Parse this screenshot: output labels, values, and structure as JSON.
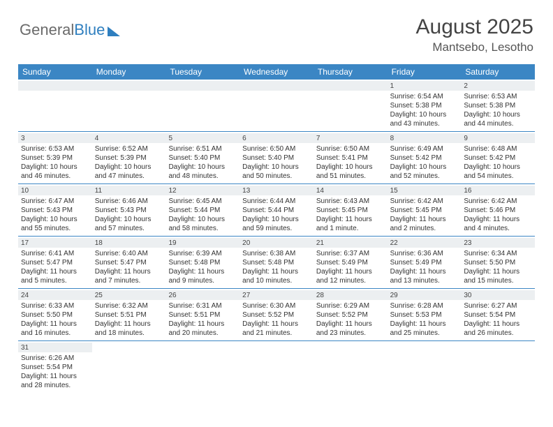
{
  "logo": {
    "general": "General",
    "blue": "Blue"
  },
  "title": {
    "month": "August 2025",
    "location": "Mantsebo, Lesotho"
  },
  "colors": {
    "header_bg": "#3b86c4",
    "daynum_bg": "#eceff1",
    "text": "#333333",
    "title_text": "#444444"
  },
  "day_names": [
    "Sunday",
    "Monday",
    "Tuesday",
    "Wednesday",
    "Thursday",
    "Friday",
    "Saturday"
  ],
  "weeks": [
    [
      null,
      null,
      null,
      null,
      null,
      {
        "n": "1",
        "sr": "Sunrise: 6:54 AM",
        "ss": "Sunset: 5:38 PM",
        "dl1": "Daylight: 10 hours",
        "dl2": "and 43 minutes."
      },
      {
        "n": "2",
        "sr": "Sunrise: 6:53 AM",
        "ss": "Sunset: 5:38 PM",
        "dl1": "Daylight: 10 hours",
        "dl2": "and 44 minutes."
      }
    ],
    [
      {
        "n": "3",
        "sr": "Sunrise: 6:53 AM",
        "ss": "Sunset: 5:39 PM",
        "dl1": "Daylight: 10 hours",
        "dl2": "and 46 minutes."
      },
      {
        "n": "4",
        "sr": "Sunrise: 6:52 AM",
        "ss": "Sunset: 5:39 PM",
        "dl1": "Daylight: 10 hours",
        "dl2": "and 47 minutes."
      },
      {
        "n": "5",
        "sr": "Sunrise: 6:51 AM",
        "ss": "Sunset: 5:40 PM",
        "dl1": "Daylight: 10 hours",
        "dl2": "and 48 minutes."
      },
      {
        "n": "6",
        "sr": "Sunrise: 6:50 AM",
        "ss": "Sunset: 5:40 PM",
        "dl1": "Daylight: 10 hours",
        "dl2": "and 50 minutes."
      },
      {
        "n": "7",
        "sr": "Sunrise: 6:50 AM",
        "ss": "Sunset: 5:41 PM",
        "dl1": "Daylight: 10 hours",
        "dl2": "and 51 minutes."
      },
      {
        "n": "8",
        "sr": "Sunrise: 6:49 AM",
        "ss": "Sunset: 5:42 PM",
        "dl1": "Daylight: 10 hours",
        "dl2": "and 52 minutes."
      },
      {
        "n": "9",
        "sr": "Sunrise: 6:48 AM",
        "ss": "Sunset: 5:42 PM",
        "dl1": "Daylight: 10 hours",
        "dl2": "and 54 minutes."
      }
    ],
    [
      {
        "n": "10",
        "sr": "Sunrise: 6:47 AM",
        "ss": "Sunset: 5:43 PM",
        "dl1": "Daylight: 10 hours",
        "dl2": "and 55 minutes."
      },
      {
        "n": "11",
        "sr": "Sunrise: 6:46 AM",
        "ss": "Sunset: 5:43 PM",
        "dl1": "Daylight: 10 hours",
        "dl2": "and 57 minutes."
      },
      {
        "n": "12",
        "sr": "Sunrise: 6:45 AM",
        "ss": "Sunset: 5:44 PM",
        "dl1": "Daylight: 10 hours",
        "dl2": "and 58 minutes."
      },
      {
        "n": "13",
        "sr": "Sunrise: 6:44 AM",
        "ss": "Sunset: 5:44 PM",
        "dl1": "Daylight: 10 hours",
        "dl2": "and 59 minutes."
      },
      {
        "n": "14",
        "sr": "Sunrise: 6:43 AM",
        "ss": "Sunset: 5:45 PM",
        "dl1": "Daylight: 11 hours",
        "dl2": "and 1 minute."
      },
      {
        "n": "15",
        "sr": "Sunrise: 6:42 AM",
        "ss": "Sunset: 5:45 PM",
        "dl1": "Daylight: 11 hours",
        "dl2": "and 2 minutes."
      },
      {
        "n": "16",
        "sr": "Sunrise: 6:42 AM",
        "ss": "Sunset: 5:46 PM",
        "dl1": "Daylight: 11 hours",
        "dl2": "and 4 minutes."
      }
    ],
    [
      {
        "n": "17",
        "sr": "Sunrise: 6:41 AM",
        "ss": "Sunset: 5:47 PM",
        "dl1": "Daylight: 11 hours",
        "dl2": "and 5 minutes."
      },
      {
        "n": "18",
        "sr": "Sunrise: 6:40 AM",
        "ss": "Sunset: 5:47 PM",
        "dl1": "Daylight: 11 hours",
        "dl2": "and 7 minutes."
      },
      {
        "n": "19",
        "sr": "Sunrise: 6:39 AM",
        "ss": "Sunset: 5:48 PM",
        "dl1": "Daylight: 11 hours",
        "dl2": "and 9 minutes."
      },
      {
        "n": "20",
        "sr": "Sunrise: 6:38 AM",
        "ss": "Sunset: 5:48 PM",
        "dl1": "Daylight: 11 hours",
        "dl2": "and 10 minutes."
      },
      {
        "n": "21",
        "sr": "Sunrise: 6:37 AM",
        "ss": "Sunset: 5:49 PM",
        "dl1": "Daylight: 11 hours",
        "dl2": "and 12 minutes."
      },
      {
        "n": "22",
        "sr": "Sunrise: 6:36 AM",
        "ss": "Sunset: 5:49 PM",
        "dl1": "Daylight: 11 hours",
        "dl2": "and 13 minutes."
      },
      {
        "n": "23",
        "sr": "Sunrise: 6:34 AM",
        "ss": "Sunset: 5:50 PM",
        "dl1": "Daylight: 11 hours",
        "dl2": "and 15 minutes."
      }
    ],
    [
      {
        "n": "24",
        "sr": "Sunrise: 6:33 AM",
        "ss": "Sunset: 5:50 PM",
        "dl1": "Daylight: 11 hours",
        "dl2": "and 16 minutes."
      },
      {
        "n": "25",
        "sr": "Sunrise: 6:32 AM",
        "ss": "Sunset: 5:51 PM",
        "dl1": "Daylight: 11 hours",
        "dl2": "and 18 minutes."
      },
      {
        "n": "26",
        "sr": "Sunrise: 6:31 AM",
        "ss": "Sunset: 5:51 PM",
        "dl1": "Daylight: 11 hours",
        "dl2": "and 20 minutes."
      },
      {
        "n": "27",
        "sr": "Sunrise: 6:30 AM",
        "ss": "Sunset: 5:52 PM",
        "dl1": "Daylight: 11 hours",
        "dl2": "and 21 minutes."
      },
      {
        "n": "28",
        "sr": "Sunrise: 6:29 AM",
        "ss": "Sunset: 5:52 PM",
        "dl1": "Daylight: 11 hours",
        "dl2": "and 23 minutes."
      },
      {
        "n": "29",
        "sr": "Sunrise: 6:28 AM",
        "ss": "Sunset: 5:53 PM",
        "dl1": "Daylight: 11 hours",
        "dl2": "and 25 minutes."
      },
      {
        "n": "30",
        "sr": "Sunrise: 6:27 AM",
        "ss": "Sunset: 5:54 PM",
        "dl1": "Daylight: 11 hours",
        "dl2": "and 26 minutes."
      }
    ],
    [
      {
        "n": "31",
        "sr": "Sunrise: 6:26 AM",
        "ss": "Sunset: 5:54 PM",
        "dl1": "Daylight: 11 hours",
        "dl2": "and 28 minutes."
      },
      null,
      null,
      null,
      null,
      null,
      null
    ]
  ]
}
